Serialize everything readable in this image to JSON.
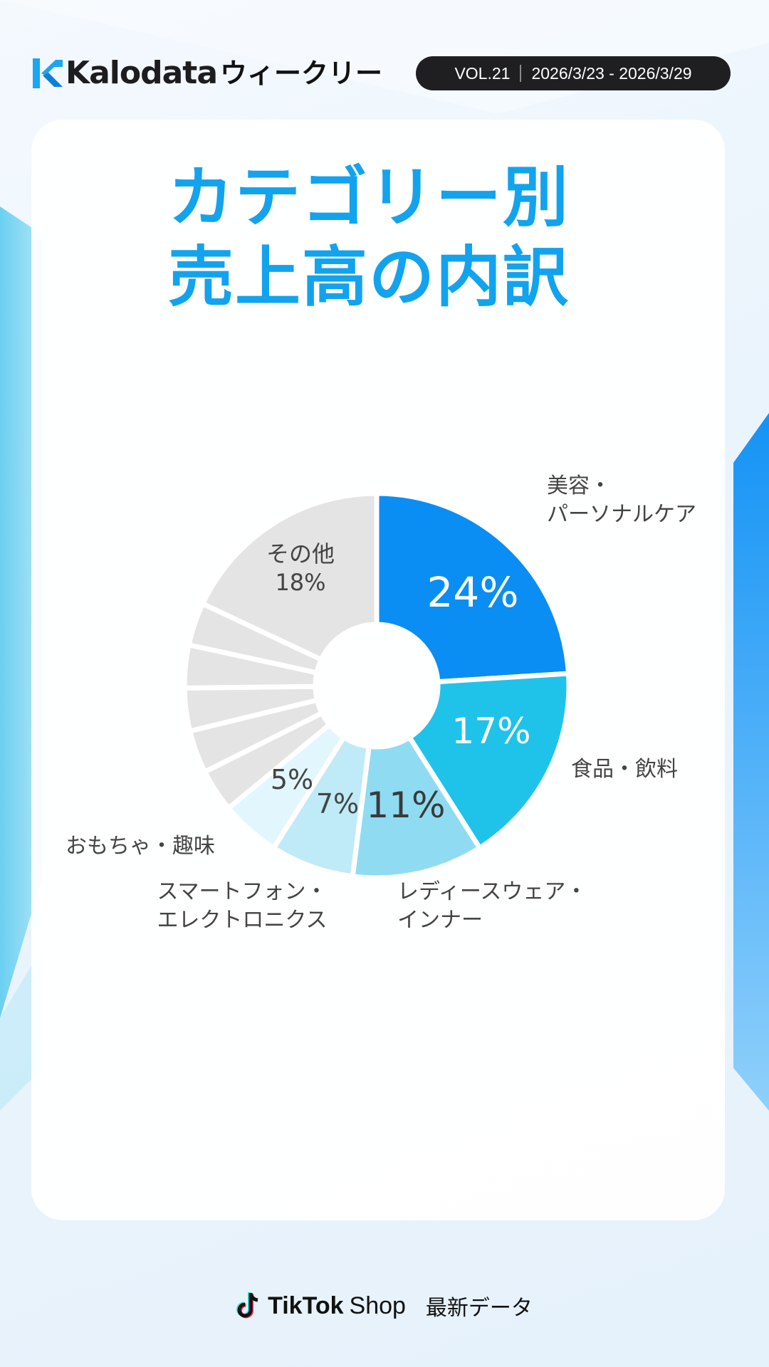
{
  "header": {
    "brand": "Kalodata",
    "weekly": "ウィークリー",
    "volume": "VOL.21",
    "date_range": "2026/3/23 - 2026/3/29"
  },
  "title": {
    "line1": "カテゴリー別",
    "line2": "売上高の内訳"
  },
  "colors": {
    "accent": "#12a3ee",
    "other": "#e4e4e4"
  },
  "chart_data": {
    "type": "pie",
    "style": "donut",
    "series": [
      {
        "label": "美容・パーソナルケア",
        "label_lines": [
          "美容・",
          "パーソナルケア"
        ],
        "value": 24,
        "value_label": "24%",
        "color": "#0b8ef3"
      },
      {
        "label": "食品・飲料",
        "label_lines": [
          "食品・飲料"
        ],
        "value": 17,
        "value_label": "17%",
        "color": "#1fc3e9"
      },
      {
        "label": "レディースウェア・インナー",
        "label_lines": [
          "レディースウェア・",
          "インナー"
        ],
        "value": 11,
        "value_label": "11%",
        "color": "#8fdcf2"
      },
      {
        "label": "スマートフォン・エレクトロニクス",
        "label_lines": [
          "スマートフォン・",
          "エレクトロニクス"
        ],
        "value": 7,
        "value_label": "7%",
        "color": "#bfeaf8"
      },
      {
        "label": "おもちゃ・趣味",
        "label_lines": [
          "おもちゃ・趣味"
        ],
        "value": 5,
        "value_label": "5%",
        "color": "#e2f6fd"
      },
      {
        "label": "unlabeled-1",
        "label_lines": [],
        "value": 3.6,
        "value_label": "",
        "color": "#e4e4e4"
      },
      {
        "label": "unlabeled-2",
        "label_lines": [],
        "value": 3.6,
        "value_label": "",
        "color": "#e4e4e4"
      },
      {
        "label": "unlabeled-3",
        "label_lines": [],
        "value": 3.6,
        "value_label": "",
        "color": "#e4e4e4"
      },
      {
        "label": "unlabeled-4",
        "label_lines": [],
        "value": 3.6,
        "value_label": "",
        "color": "#e4e4e4"
      },
      {
        "label": "unlabeled-5",
        "label_lines": [],
        "value": 3.6,
        "value_label": "",
        "color": "#e4e4e4"
      },
      {
        "label": "その他",
        "label_lines": [],
        "value": 18,
        "value_label": "その他 18%",
        "color": "#e4e4e4"
      }
    ]
  },
  "footer": {
    "brand": "TikTok",
    "shop": "Shop",
    "latest": "最新データ"
  }
}
